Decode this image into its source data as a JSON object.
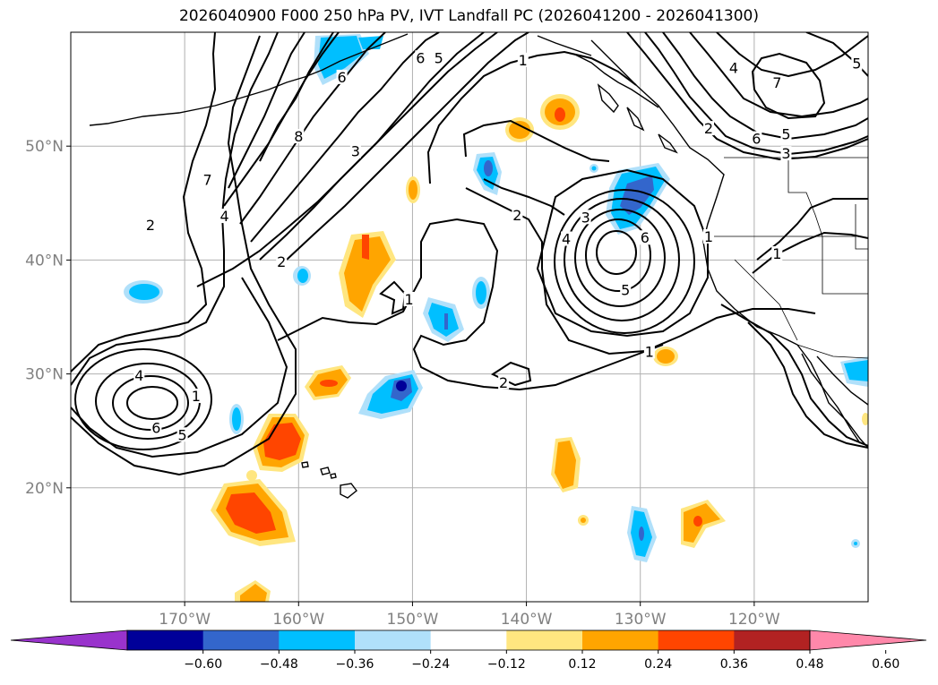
{
  "title": "2026040900 F000 250 hPa PV, IVT Landfall PC (2026041200 - 2026041300)",
  "map": {
    "lon_range": [
      -180,
      -110
    ],
    "lat_range": [
      10,
      60
    ],
    "lon_ticks": [
      {
        "lon": -170,
        "label": "170°W"
      },
      {
        "lon": -160,
        "label": "160°W"
      },
      {
        "lon": -150,
        "label": "150°W"
      },
      {
        "lon": -140,
        "label": "140°W"
      },
      {
        "lon": -130,
        "label": "130°W"
      },
      {
        "lon": -120,
        "label": "120°W"
      }
    ],
    "lat_ticks": [
      {
        "lat": 20,
        "label": "20°N"
      },
      {
        "lat": 30,
        "label": "30°N"
      },
      {
        "lat": 40,
        "label": "40°N"
      },
      {
        "lat": 50,
        "label": "50°N"
      }
    ],
    "grid": true
  },
  "contour_labels": [
    {
      "text": "1",
      "lon": -169,
      "lat": 28
    },
    {
      "text": "4",
      "lon": -174,
      "lat": 29.8
    },
    {
      "text": "6",
      "lon": -172.5,
      "lat": 25.2
    },
    {
      "text": "5",
      "lon": -170.2,
      "lat": 24.6
    },
    {
      "text": "2",
      "lon": -173,
      "lat": 43
    },
    {
      "text": "7",
      "lon": -168,
      "lat": 47
    },
    {
      "text": "4",
      "lon": -166.5,
      "lat": 43.8
    },
    {
      "text": "2",
      "lon": -161.5,
      "lat": 39.8
    },
    {
      "text": "8",
      "lon": -160,
      "lat": 50.8
    },
    {
      "text": "3",
      "lon": -155,
      "lat": 49.5
    },
    {
      "text": "6",
      "lon": -149.3,
      "lat": 57.7
    },
    {
      "text": "5",
      "lon": -147.7,
      "lat": 57.7
    },
    {
      "text": "6",
      "lon": -156.2,
      "lat": 56
    },
    {
      "text": "1",
      "lon": -150.3,
      "lat": 36.5
    },
    {
      "text": "1",
      "lon": -140.3,
      "lat": 57.5
    },
    {
      "text": "2",
      "lon": -140.8,
      "lat": 43.9
    },
    {
      "text": "2",
      "lon": -142,
      "lat": 29.2
    },
    {
      "text": "3",
      "lon": -134.8,
      "lat": 43.7
    },
    {
      "text": "4",
      "lon": -136.5,
      "lat": 41.8
    },
    {
      "text": "6",
      "lon": -129.6,
      "lat": 41.9
    },
    {
      "text": "5",
      "lon": -131.3,
      "lat": 37.3
    },
    {
      "text": "1",
      "lon": -129.2,
      "lat": 31.9
    },
    {
      "text": "1",
      "lon": -124,
      "lat": 42
    },
    {
      "text": "1",
      "lon": -118,
      "lat": 40.5
    },
    {
      "text": "2",
      "lon": -124,
      "lat": 51.5
    },
    {
      "text": "4",
      "lon": -121.8,
      "lat": 56.8
    },
    {
      "text": "6",
      "lon": -119.8,
      "lat": 50.6
    },
    {
      "text": "5",
      "lon": -117.2,
      "lat": 51
    },
    {
      "text": "3",
      "lon": -117.2,
      "lat": 49.3
    },
    {
      "text": "7",
      "lon": -118,
      "lat": 55.5
    },
    {
      "text": "5",
      "lon": -111,
      "lat": 57.2
    }
  ],
  "colorbar": {
    "colors": [
      "#9933cc",
      "#000099",
      "#3366cc",
      "#00bfff",
      "#b0e0fa",
      "#ffffff",
      "#ffe680",
      "#ffa500",
      "#ff4500",
      "#b22222",
      "#ff88aa"
    ],
    "ticks": [
      "−0.60",
      "−0.48",
      "−0.36",
      "−0.24",
      "−0.12",
      "0.12",
      "0.24",
      "0.36",
      "0.48",
      "0.60"
    ]
  }
}
